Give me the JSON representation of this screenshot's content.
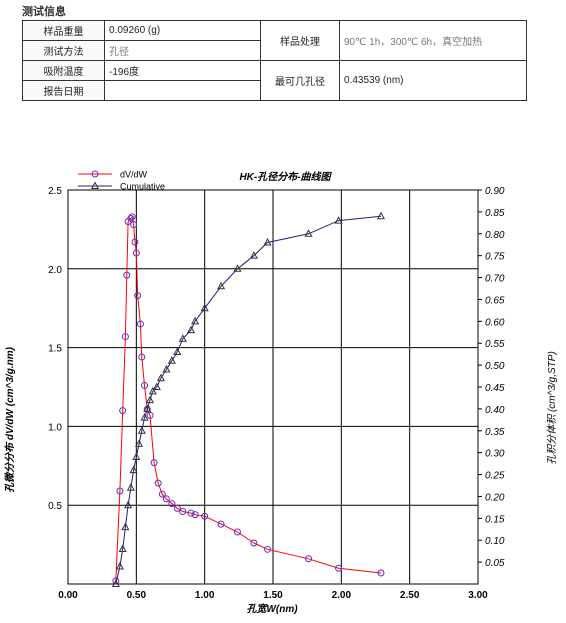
{
  "section_title": "测试信息",
  "info": {
    "sample_weight_label": "样品重量",
    "sample_weight_value": "0.09260 (g)",
    "method_label": "测试方法",
    "method_value": "孔径",
    "ads_temp_label": "吸附温度",
    "ads_temp_value": "-196度",
    "report_date_label": "报告日期",
    "report_date_value": "",
    "treatment_label": "样品处理",
    "treatment_value": "90℃ 1h，300℃ 6h，真空加热",
    "probable_pore_label": "最可几孔径",
    "probable_pore_value": "0.43539 (nm)"
  },
  "chart_data": {
    "type": "line",
    "title": "HK-孔径分布-曲线图",
    "xlabel": "孔宽W(nm)",
    "ylabel_left": "孔微分分布 dV/dW (cm^3/g.nm)",
    "ylabel_right": "孔积分体积 (cm^3/g,STP)",
    "xlim": [
      0,
      3.0
    ],
    "ylim_left": [
      0,
      2.5
    ],
    "ylim_right": [
      0,
      0.9
    ],
    "x_ticks": [
      "0.00",
      "0.50",
      "1.00",
      "1.50",
      "2.00",
      "2.50",
      "3.00"
    ],
    "y_left_ticks": [
      "0.5",
      "1.0",
      "1.5",
      "2.0",
      "2.5"
    ],
    "y_right_ticks": [
      "0.05",
      "0.10",
      "0.15",
      "0.20",
      "0.25",
      "0.30",
      "0.35",
      "0.40",
      "0.45",
      "0.50",
      "0.55",
      "0.60",
      "0.65",
      "0.70",
      "0.75",
      "0.80",
      "0.85",
      "0.90"
    ],
    "grid": true,
    "legend_position": "top-left",
    "series": [
      {
        "name": "dV/dW",
        "axis": "left",
        "color": "#ff0000",
        "marker_color": "#6a2cc8",
        "x": [
          0.35,
          0.38,
          0.4,
          0.42,
          0.43,
          0.44,
          0.46,
          0.47,
          0.48,
          0.49,
          0.5,
          0.51,
          0.53,
          0.54,
          0.56,
          0.58,
          0.6,
          0.63,
          0.66,
          0.69,
          0.72,
          0.76,
          0.8,
          0.84,
          0.9,
          0.93,
          1.0,
          1.12,
          1.24,
          1.36,
          1.46,
          1.76,
          1.98,
          2.29
        ],
        "y": [
          0.02,
          0.59,
          1.1,
          1.57,
          1.96,
          2.3,
          2.32,
          2.33,
          2.28,
          2.17,
          2.1,
          1.83,
          1.65,
          1.44,
          1.26,
          1.11,
          1.07,
          0.77,
          0.64,
          0.57,
          0.54,
          0.51,
          0.48,
          0.46,
          0.45,
          0.44,
          0.43,
          0.38,
          0.33,
          0.26,
          0.22,
          0.16,
          0.1,
          0.07
        ]
      },
      {
        "name": "Cumulative",
        "axis": "right",
        "color": "#1a237e",
        "marker_color": "#333333",
        "x": [
          0.35,
          0.38,
          0.4,
          0.42,
          0.44,
          0.46,
          0.48,
          0.5,
          0.52,
          0.54,
          0.56,
          0.58,
          0.6,
          0.62,
          0.65,
          0.68,
          0.72,
          0.76,
          0.8,
          0.84,
          0.9,
          0.93,
          1.0,
          1.12,
          1.24,
          1.36,
          1.46,
          1.76,
          1.98,
          2.29
        ],
        "y": [
          0.0,
          0.04,
          0.08,
          0.13,
          0.18,
          0.22,
          0.26,
          0.29,
          0.32,
          0.35,
          0.38,
          0.4,
          0.42,
          0.44,
          0.45,
          0.47,
          0.49,
          0.51,
          0.53,
          0.56,
          0.58,
          0.6,
          0.63,
          0.68,
          0.72,
          0.75,
          0.78,
          0.8,
          0.83,
          0.84
        ]
      }
    ]
  }
}
